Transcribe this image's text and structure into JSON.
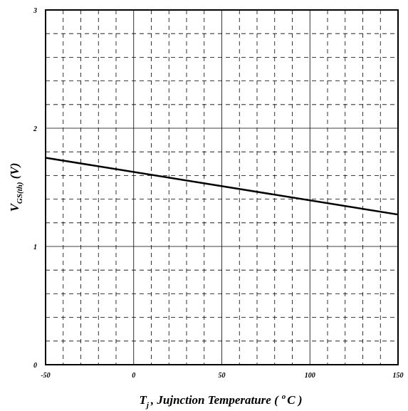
{
  "chart_data": {
    "type": "line",
    "xlabel": {
      "main": "T",
      "sub": "j",
      "rest": ", Jujnction Temperature (",
      "sup": "o",
      "unit": "C )"
    },
    "ylabel": {
      "main": "V",
      "sub": "GS(th)",
      "unit": " (V)"
    },
    "xlim": [
      -50,
      150
    ],
    "ylim": [
      0,
      3
    ],
    "x_ticks": [
      -50,
      0,
      50,
      100,
      150
    ],
    "y_ticks": [
      0,
      1,
      2,
      3
    ],
    "x_minor_step": 10,
    "y_minor_step": 0.2,
    "grid": true,
    "series": [
      {
        "x": [
          -50,
          150
        ],
        "y": [
          1.75,
          1.27
        ],
        "color": "#000000"
      }
    ]
  }
}
